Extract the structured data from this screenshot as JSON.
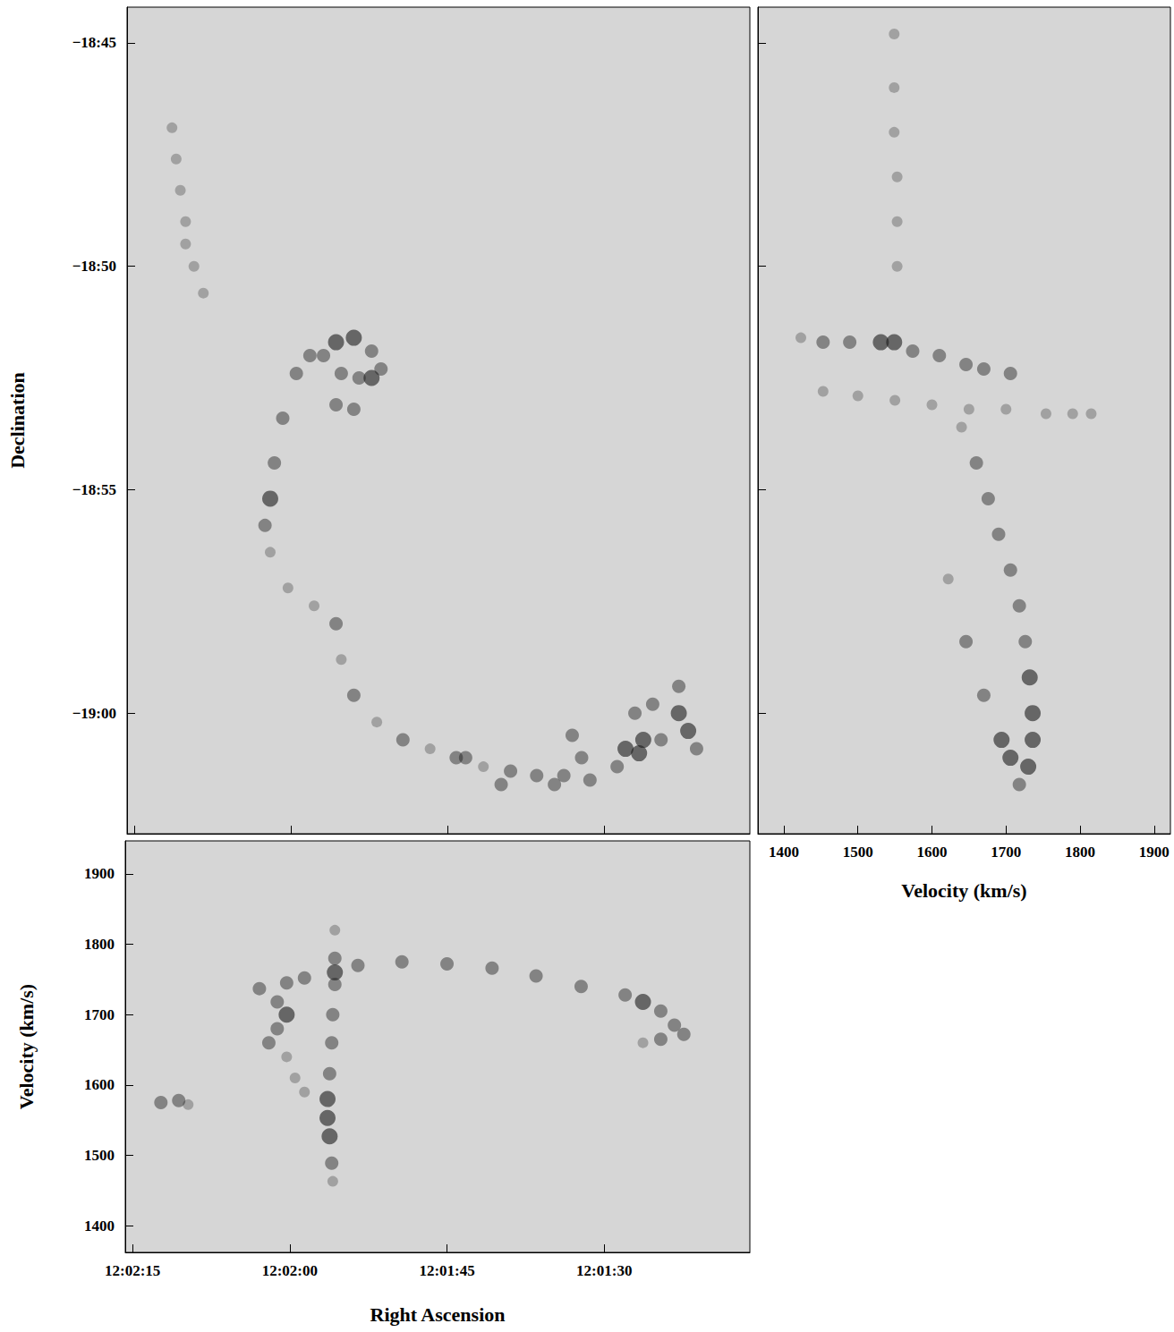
{
  "chart_data": [
    {
      "type": "scatter",
      "ylabel": "Declination",
      "tick_labels": "y",
      "grid": false,
      "color": "#1a1a1a",
      "xlim": [
        135.7,
        76.1
      ],
      "xticks": [
        {
          "value": 135,
          "label": "12:02:15"
        },
        {
          "value": 120,
          "label": "12:02:00"
        },
        {
          "value": 105,
          "label": "12:01:45"
        },
        {
          "value": 90,
          "label": "12:01:30"
        }
      ],
      "ylim": [
        -1142.7,
        -1124.2
      ],
      "yticks": [
        {
          "value": -1125,
          "label": "−18:45"
        },
        {
          "value": -1130,
          "label": "−18:50"
        },
        {
          "value": -1135,
          "label": "−18:55"
        },
        {
          "value": -1140,
          "label": "−19:00"
        }
      ],
      "x": [
        131.4,
        131.0,
        130.6,
        130.1,
        130.1,
        129.3,
        128.4,
        119.5,
        120.8,
        121.6,
        122.0,
        122.5,
        115.7,
        114.0,
        112.3,
        111.4,
        115.2,
        113.5,
        112.3,
        115.7,
        114.0,
        116.9,
        118.2,
        122.0,
        120.3,
        117.8,
        115.7,
        115.2,
        114.0,
        111.8,
        109.3,
        106.7,
        104.2,
        101.6,
        99.0,
        96.5,
        93.9,
        91.4,
        88.8,
        86.3,
        84.6,
        82.9,
        82.0,
        81.2,
        86.7,
        88.0,
        92.2,
        94.8,
        99.9,
        103.3,
        93.1,
        87.1,
        85.4,
        82.9
      ],
      "y": [
        -1126.9,
        -1127.6,
        -1128.3,
        -1129.0,
        -1129.5,
        -1130.0,
        -1130.6,
        -1132.4,
        -1133.4,
        -1134.4,
        -1135.2,
        -1135.8,
        -1131.7,
        -1131.6,
        -1131.9,
        -1132.3,
        -1132.4,
        -1132.5,
        -1132.5,
        -1133.1,
        -1133.2,
        -1132.0,
        -1132.0,
        -1136.4,
        -1137.2,
        -1137.6,
        -1138.0,
        -1138.8,
        -1139.6,
        -1140.2,
        -1140.6,
        -1140.8,
        -1141.0,
        -1141.2,
        -1141.3,
        -1141.4,
        -1141.4,
        -1141.5,
        -1141.2,
        -1140.6,
        -1140.6,
        -1140.0,
        -1140.4,
        -1140.8,
        -1140.9,
        -1140.8,
        -1141.0,
        -1141.6,
        -1141.6,
        -1141.0,
        -1140.5,
        -1140.0,
        -1139.8,
        -1139.4
      ],
      "intensity": [
        1,
        1,
        1,
        1,
        1,
        1,
        1,
        2,
        2,
        2,
        3,
        2,
        3,
        3,
        2,
        2,
        2,
        2,
        3,
        2,
        2,
        2,
        2,
        1,
        1,
        1,
        2,
        1,
        2,
        1,
        2,
        1,
        2,
        1,
        2,
        2,
        2,
        2,
        2,
        3,
        2,
        3,
        3,
        2,
        3,
        3,
        2,
        2,
        2,
        2,
        2,
        2,
        2,
        2
      ]
    },
    {
      "type": "scatter",
      "xlabel": "Velocity (km/s)",
      "tick_labels": "x",
      "grid": false,
      "color": "#1a1a1a",
      "xlim": [
        1365,
        1922
      ],
      "xticks": [
        1400,
        1500,
        1600,
        1700,
        1800,
        1900
      ],
      "ylim": [
        -1142.7,
        -1124.2
      ],
      "yticks": [
        -1125,
        -1130,
        -1135,
        -1140
      ],
      "x": [
        1549,
        1549,
        1549,
        1553,
        1553,
        1553,
        1423,
        1453,
        1489,
        1531,
        1549,
        1574,
        1610,
        1646,
        1670,
        1706,
        1453,
        1500,
        1550,
        1600,
        1650,
        1700,
        1754,
        1790,
        1815,
        1640,
        1660,
        1676,
        1690,
        1706,
        1718,
        1726,
        1732,
        1736,
        1736,
        1730,
        1718,
        1622,
        1646,
        1670,
        1694,
        1706
      ],
      "y": [
        -1124.8,
        -1126.0,
        -1127.0,
        -1128.0,
        -1129.0,
        -1130.0,
        -1131.6,
        -1131.7,
        -1131.7,
        -1131.7,
        -1131.7,
        -1131.9,
        -1132.0,
        -1132.2,
        -1132.3,
        -1132.4,
        -1132.8,
        -1132.9,
        -1133.0,
        -1133.1,
        -1133.2,
        -1133.2,
        -1133.3,
        -1133.3,
        -1133.3,
        -1133.6,
        -1134.4,
        -1135.2,
        -1136.0,
        -1136.8,
        -1137.6,
        -1138.4,
        -1139.2,
        -1140.0,
        -1140.6,
        -1141.2,
        -1141.6,
        -1137.0,
        -1138.4,
        -1139.6,
        -1140.6,
        -1141.0
      ],
      "intensity": [
        1,
        1,
        1,
        1,
        1,
        1,
        1,
        2,
        2,
        3,
        3,
        2,
        2,
        2,
        2,
        2,
        1,
        1,
        1,
        1,
        1,
        1,
        1,
        1,
        1,
        1,
        2,
        2,
        2,
        2,
        2,
        2,
        3,
        3,
        3,
        3,
        2,
        1,
        2,
        2,
        3,
        3
      ]
    },
    {
      "type": "scatter",
      "xlabel": "Right Ascension",
      "ylabel": "Velocity (km/s)",
      "tick_labels": true,
      "grid": false,
      "color": "#1a1a1a",
      "xlim": [
        135.7,
        76.1
      ],
      "xticks": [
        {
          "value": 135,
          "label": "12:02:15"
        },
        {
          "value": 120,
          "label": "12:02:00"
        },
        {
          "value": 105,
          "label": "12:01:45"
        },
        {
          "value": 90,
          "label": "12:01:30"
        }
      ],
      "ylim": [
        1362,
        1947
      ],
      "yticks": [
        1400,
        1500,
        1600,
        1700,
        1800,
        1900
      ],
      "x": [
        122.9,
        120.3,
        118.6,
        115.7,
        113.5,
        109.3,
        105.0,
        100.7,
        96.5,
        92.2,
        88.0,
        86.3,
        84.6,
        83.3,
        82.4,
        84.6,
        86.3,
        115.7,
        115.7,
        115.7,
        115.9,
        116.0,
        116.2,
        116.4,
        116.4,
        116.2,
        116.0,
        115.9,
        121.2,
        120.3,
        121.2,
        122.0,
        120.3,
        119.5,
        118.6,
        132.3,
        130.6,
        129.7
      ],
      "y": [
        1737,
        1745,
        1752,
        1760,
        1770,
        1775,
        1772,
        1766,
        1755,
        1740,
        1728,
        1718,
        1705,
        1685,
        1672,
        1665,
        1660,
        1820,
        1780,
        1743,
        1700,
        1660,
        1616,
        1580,
        1553,
        1527,
        1489,
        1463,
        1718,
        1700,
        1680,
        1660,
        1640,
        1610,
        1590,
        1575,
        1578,
        1572
      ],
      "intensity": [
        2,
        2,
        2,
        3,
        2,
        2,
        2,
        2,
        2,
        2,
        2,
        3,
        2,
        2,
        2,
        2,
        1,
        1,
        2,
        2,
        2,
        2,
        2,
        3,
        3,
        3,
        2,
        1,
        2,
        3,
        2,
        2,
        1,
        1,
        1,
        2,
        2,
        1
      ]
    }
  ]
}
